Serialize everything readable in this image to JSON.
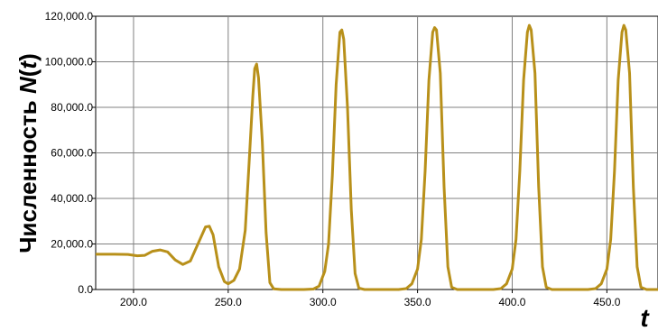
{
  "chart_data": {
    "type": "line",
    "xlabel": "t",
    "ylabel": "Численность N(t)",
    "xlim": [
      180,
      477
    ],
    "ylim": [
      0,
      120000
    ],
    "x_ticks": [
      200,
      250,
      300,
      350,
      400,
      450
    ],
    "x_tick_labels": [
      "200.0",
      "250.0",
      "300.0",
      "350.0",
      "400.0",
      "450.0"
    ],
    "y_ticks": [
      0,
      20000,
      40000,
      60000,
      80000,
      100000,
      120000
    ],
    "y_tick_labels": [
      "0.0",
      "20,000.0",
      "40,000.0",
      "60,000.0",
      "80,000.0",
      "100,000.0",
      "120,000.0"
    ],
    "grid": true,
    "series": [
      {
        "color": "#B8901A",
        "points": [
          [
            180,
            15500
          ],
          [
            190,
            15500
          ],
          [
            197,
            15400
          ],
          [
            202,
            14800
          ],
          [
            206,
            15000
          ],
          [
            210,
            16800
          ],
          [
            214,
            17400
          ],
          [
            218,
            16500
          ],
          [
            222,
            13000
          ],
          [
            226,
            11000
          ],
          [
            230,
            12500
          ],
          [
            234,
            20000
          ],
          [
            238,
            27500
          ],
          [
            240,
            27800
          ],
          [
            242,
            24000
          ],
          [
            245,
            10000
          ],
          [
            248,
            3500
          ],
          [
            250,
            2500
          ],
          [
            253,
            4000
          ],
          [
            256,
            9000
          ],
          [
            259,
            26000
          ],
          [
            261,
            55000
          ],
          [
            263,
            85000
          ],
          [
            264,
            97000
          ],
          [
            265,
            99000
          ],
          [
            266,
            93000
          ],
          [
            268,
            65000
          ],
          [
            270,
            25000
          ],
          [
            272,
            3000
          ],
          [
            274,
            300
          ],
          [
            278,
            0
          ],
          [
            290,
            0
          ],
          [
            295,
            200
          ],
          [
            298,
            1500
          ],
          [
            301,
            8000
          ],
          [
            303,
            20000
          ],
          [
            305,
            50000
          ],
          [
            307,
            90000
          ],
          [
            309,
            113000
          ],
          [
            310,
            114000
          ],
          [
            311,
            110000
          ],
          [
            313,
            80000
          ],
          [
            315,
            35000
          ],
          [
            317,
            7000
          ],
          [
            319,
            600
          ],
          [
            322,
            0
          ],
          [
            340,
            0
          ],
          [
            344,
            400
          ],
          [
            347,
            2500
          ],
          [
            350,
            9000
          ],
          [
            352,
            22000
          ],
          [
            354,
            52000
          ],
          [
            356,
            92000
          ],
          [
            358,
            113000
          ],
          [
            359,
            115000
          ],
          [
            360,
            114000
          ],
          [
            362,
            95000
          ],
          [
            364,
            45000
          ],
          [
            366,
            10000
          ],
          [
            368,
            1000
          ],
          [
            371,
            0
          ],
          [
            390,
            0
          ],
          [
            394,
            400
          ],
          [
            397,
            2500
          ],
          [
            400,
            9000
          ],
          [
            402,
            22000
          ],
          [
            404,
            52000
          ],
          [
            406,
            92000
          ],
          [
            408,
            113000
          ],
          [
            409,
            116000
          ],
          [
            410,
            114000
          ],
          [
            412,
            95000
          ],
          [
            414,
            45000
          ],
          [
            416,
            10000
          ],
          [
            418,
            1000
          ],
          [
            421,
            0
          ],
          [
            440,
            0
          ],
          [
            444,
            400
          ],
          [
            447,
            2500
          ],
          [
            450,
            9000
          ],
          [
            452,
            22000
          ],
          [
            454,
            52000
          ],
          [
            456,
            92000
          ],
          [
            458,
            113000
          ],
          [
            459,
            116000
          ],
          [
            460,
            114000
          ],
          [
            462,
            95000
          ],
          [
            464,
            45000
          ],
          [
            466,
            10000
          ],
          [
            468,
            1000
          ],
          [
            471,
            0
          ],
          [
            477,
            0
          ]
        ]
      }
    ]
  }
}
